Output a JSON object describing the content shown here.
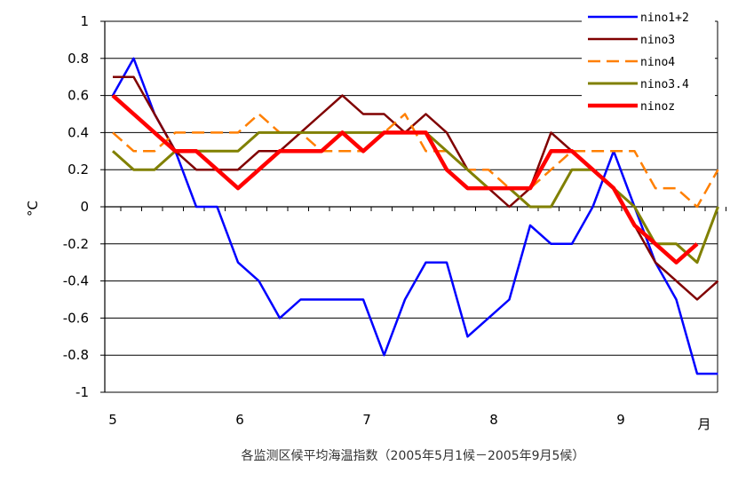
{
  "chart_data": {
    "type": "line",
    "title": "",
    "caption": "各监测区候平均海温指数（2005年5月1候－2005年9月5候）",
    "ylabel": "°C",
    "xunit": "月",
    "ylim": [
      -1,
      1
    ],
    "yticks": [
      1,
      0.8,
      0.6,
      0.4,
      0.2,
      0,
      -0.2,
      -0.4,
      -0.6,
      -0.8,
      -1
    ],
    "ytick_labels": [
      "1",
      "0.8",
      "0.6",
      "0.4",
      "0.2",
      "0",
      "-0.2",
      "-0.4",
      "-0.6",
      "-0.8",
      "-1"
    ],
    "xtick_labels": [
      "5",
      "6",
      "7",
      "8",
      "9"
    ],
    "x": [
      1,
      2,
      3,
      4,
      5,
      6,
      7,
      8,
      9,
      10,
      11,
      12,
      13,
      14,
      15,
      16,
      17,
      18,
      19,
      20,
      21,
      22,
      23,
      24,
      25,
      26,
      27,
      28,
      29,
      30
    ],
    "grid": "horizontal",
    "legend_position": "top-right",
    "series": [
      {
        "name": "nino1+2",
        "color": "#0000ff",
        "dash": "solid",
        "width": 2.5,
        "values": [
          0.6,
          0.8,
          0.5,
          0.3,
          0.0,
          0.0,
          -0.3,
          -0.4,
          -0.6,
          -0.5,
          -0.5,
          -0.5,
          -0.5,
          -0.8,
          -0.5,
          -0.3,
          -0.3,
          -0.7,
          -0.6,
          -0.5,
          -0.1,
          -0.2,
          -0.2,
          0.0,
          0.3,
          0.0,
          -0.3,
          -0.5,
          -0.9,
          -0.9
        ]
      },
      {
        "name": "nino3",
        "color": "#800000",
        "dash": "solid",
        "width": 2.5,
        "values": [
          0.7,
          0.7,
          0.5,
          0.3,
          0.2,
          0.2,
          0.2,
          0.3,
          0.3,
          0.4,
          0.5,
          0.6,
          0.5,
          0.5,
          0.4,
          0.5,
          0.4,
          0.2,
          0.1,
          0.0,
          0.1,
          0.4,
          0.3,
          0.2,
          0.1,
          -0.1,
          -0.3,
          -0.4,
          -0.5,
          -0.4
        ]
      },
      {
        "name": "nino4",
        "color": "#ff7f00",
        "dash": "dashed",
        "width": 2.5,
        "values": [
          0.4,
          0.3,
          0.3,
          0.4,
          0.4,
          0.4,
          0.4,
          0.5,
          0.4,
          0.4,
          0.3,
          0.3,
          0.3,
          0.4,
          0.5,
          0.3,
          0.3,
          0.2,
          0.2,
          0.1,
          0.1,
          0.2,
          0.3,
          0.3,
          0.3,
          0.3,
          0.1,
          0.1,
          0.0,
          0.2
        ]
      },
      {
        "name": "nino3.4",
        "color": "#808000",
        "dash": "solid",
        "width": 3,
        "values": [
          0.3,
          0.2,
          0.2,
          0.3,
          0.3,
          0.3,
          0.3,
          0.4,
          0.4,
          0.4,
          0.4,
          0.4,
          0.4,
          0.4,
          0.4,
          0.4,
          0.3,
          0.2,
          0.1,
          0.1,
          0.0,
          0.0,
          0.2,
          0.2,
          0.1,
          0.0,
          -0.2,
          -0.2,
          -0.3,
          0.0
        ]
      },
      {
        "name": "ninoz",
        "color": "#ff0000",
        "dash": "solid",
        "width": 4.5,
        "values": [
          0.6,
          0.5,
          0.4,
          0.3,
          0.3,
          0.2,
          0.1,
          0.2,
          0.3,
          0.3,
          0.3,
          0.4,
          0.3,
          0.4,
          0.4,
          0.4,
          0.2,
          0.1,
          0.1,
          0.1,
          0.1,
          0.3,
          0.3,
          0.2,
          0.1,
          -0.1,
          -0.2,
          -0.3,
          -0.2,
          null
        ]
      }
    ]
  }
}
